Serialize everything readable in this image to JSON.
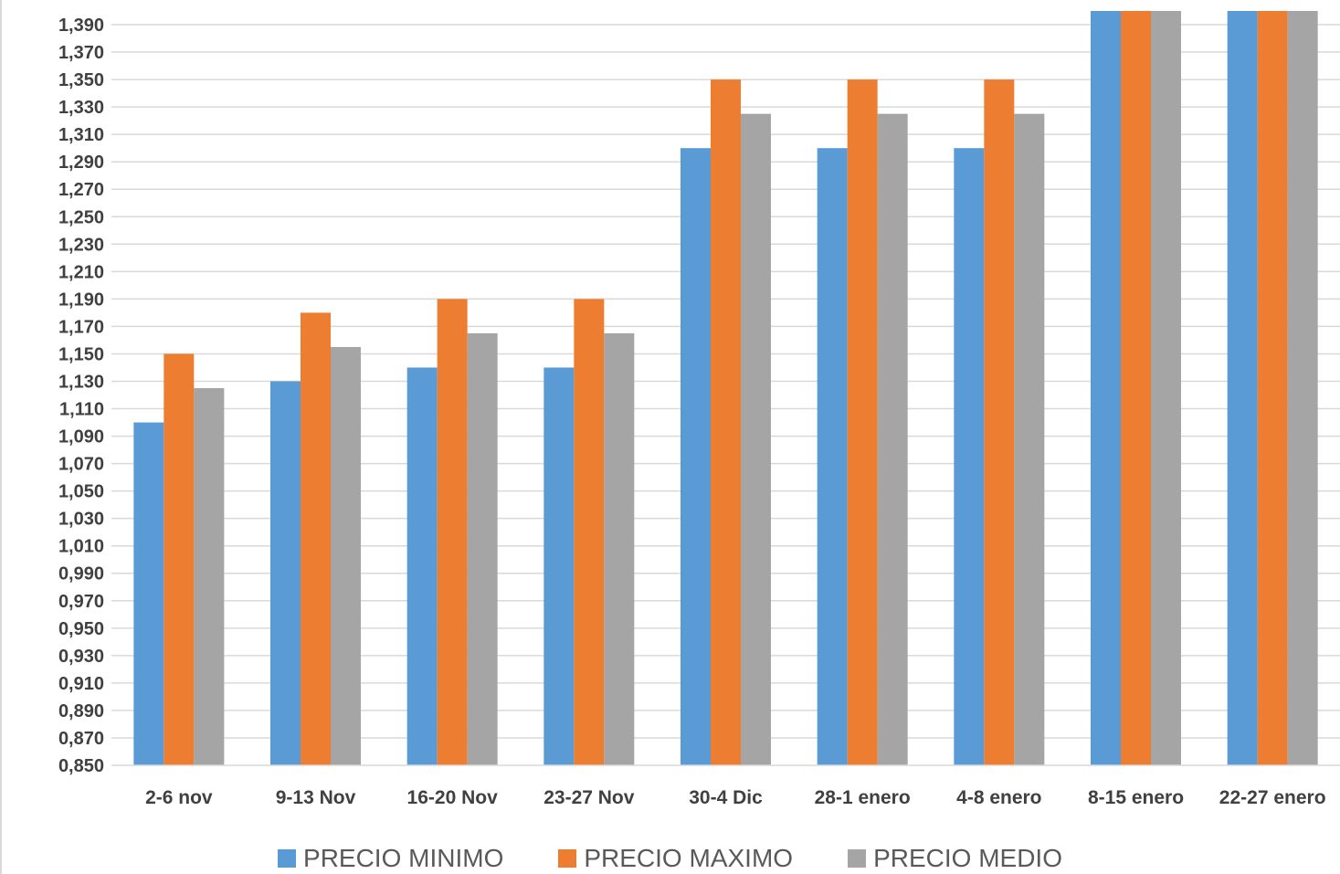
{
  "chart_data": {
    "type": "bar",
    "title": "",
    "xlabel": "",
    "ylabel": "",
    "ylim": [
      0.85,
      1.4
    ],
    "ytick_step": 0.02,
    "yticks": [
      "0,850",
      "0,870",
      "0,890",
      "0,910",
      "0,930",
      "0,950",
      "0,970",
      "0,990",
      "1,010",
      "1,030",
      "1,050",
      "1,070",
      "1,090",
      "1,110",
      "1,130",
      "1,150",
      "1,170",
      "1,190",
      "1,210",
      "1,230",
      "1,250",
      "1,270",
      "1,290",
      "1,310",
      "1,330",
      "1,350",
      "1,370",
      "1,390"
    ],
    "grid": true,
    "legend_position": "bottom",
    "categories": [
      "2-6 nov",
      "9-13 Nov",
      "16-20 Nov",
      "23-27 Nov",
      "30-4 Dic",
      "28-1 enero",
      "4-8 enero",
      "8-15 enero",
      "22-27 enero"
    ],
    "series": [
      {
        "name": "PRECIO MINIMO",
        "color": "#5b9bd5",
        "values": [
          1.1,
          1.13,
          1.14,
          1.14,
          1.3,
          1.3,
          1.3,
          1.4,
          1.4
        ]
      },
      {
        "name": "PRECIO MAXIMO",
        "color": "#ed7d31",
        "values": [
          1.15,
          1.18,
          1.19,
          1.19,
          1.35,
          1.35,
          1.35,
          1.4,
          1.4
        ]
      },
      {
        "name": "PRECIO MEDIO",
        "color": "#a5a5a5",
        "values": [
          1.125,
          1.155,
          1.165,
          1.165,
          1.325,
          1.325,
          1.325,
          1.4,
          1.4
        ]
      }
    ],
    "colors": {
      "gridline": "#d9d9d9",
      "axis_text": "#404040",
      "legend_text": "#595959"
    }
  }
}
